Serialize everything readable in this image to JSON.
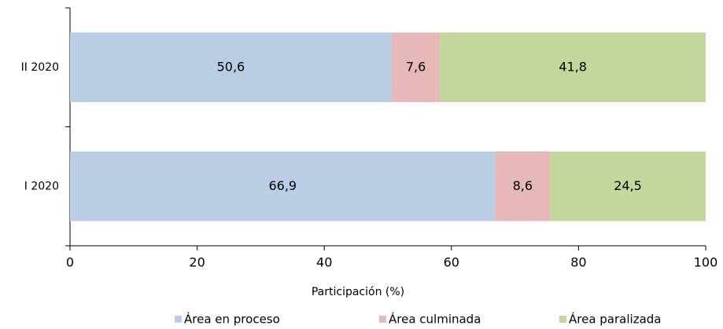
{
  "chart_data": {
    "type": "stacked_barh",
    "categories": [
      "II 2020",
      "I 2020"
    ],
    "series": [
      {
        "name": "Área en proceso",
        "color": "#b9cde5",
        "values": [
          50.6,
          66.9
        ],
        "value_labels": [
          "50,6",
          "66,9"
        ]
      },
      {
        "name": "Área culminada",
        "color": "#e6b9b8",
        "values": [
          7.6,
          8.6
        ],
        "value_labels": [
          "7,6",
          "8,6"
        ]
      },
      {
        "name": "Área paralizada",
        "color": "#c3d69b",
        "values": [
          41.8,
          24.5
        ],
        "value_labels": [
          "41,8",
          "24,5"
        ]
      }
    ],
    "xlabel": "Participación (%)",
    "xlim": [
      0,
      100
    ],
    "xticks": [
      0,
      20,
      40,
      60,
      80,
      100
    ],
    "legend": "bottom"
  }
}
